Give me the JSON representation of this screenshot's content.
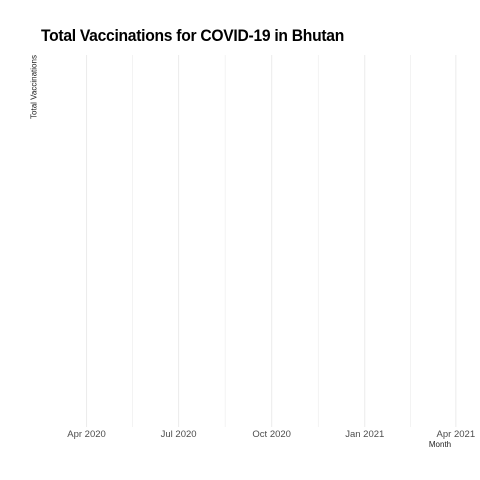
{
  "chart_data": {
    "type": "line",
    "title": "Total Vaccinations for COVID-19 in Bhutan",
    "xlabel": "Month",
    "ylabel": "Total Vaccinations",
    "x_ticks": [
      "Apr 2020",
      "Jul 2020",
      "Oct 2020",
      "Jan 2021",
      "Apr 2021"
    ],
    "x_tick_dates": [
      "2020-04-01",
      "2020-07-01",
      "2020-10-01",
      "2021-01-01",
      "2021-04-01"
    ],
    "xlim": [
      "2020-02-15",
      "2021-04-15"
    ],
    "series": [],
    "grid": true,
    "grid_color": "#ebebeb",
    "background": "#ffffff"
  }
}
